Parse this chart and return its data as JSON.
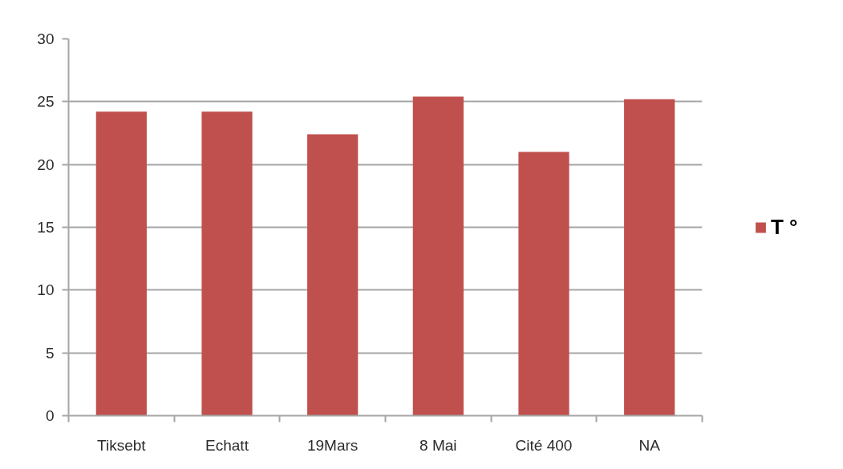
{
  "chart_data": {
    "type": "bar",
    "categories": [
      "Tiksebt",
      "Echatt",
      "19Mars",
      "8 Mai",
      "Cité 400",
      "NA"
    ],
    "series": [
      {
        "name": "T °",
        "color": "#c0504d",
        "values": [
          24.2,
          24.2,
          22.4,
          25.4,
          21,
          25.2
        ]
      }
    ],
    "ylim": [
      0,
      30
    ],
    "yticks": [
      0,
      5,
      10,
      15,
      20,
      25,
      30
    ],
    "grid": "y",
    "legend": "right"
  }
}
